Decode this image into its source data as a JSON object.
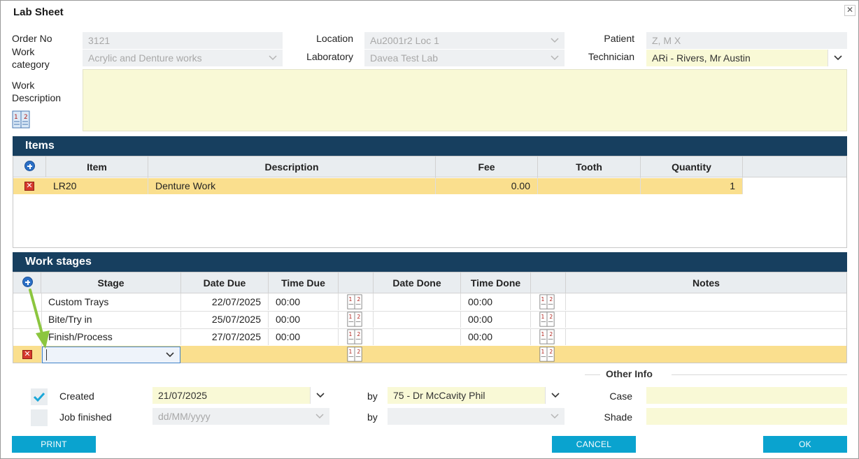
{
  "window": {
    "title": "Lab Sheet"
  },
  "form": {
    "order_no_label": "Order No",
    "order_no": "3121",
    "work_category_label": "Work\ncategory",
    "work_category": "Acrylic and Denture works",
    "location_label": "Location",
    "location": "Au2001r2 Loc 1",
    "laboratory_label": "Laboratory",
    "laboratory": "Davea Test Lab",
    "patient_label": "Patient",
    "patient": "Z, M X",
    "technician_label": "Technician",
    "technician": "ARi - Rivers, Mr Austin",
    "work_description_label": "Work\nDescription",
    "work_description": ""
  },
  "items": {
    "title": "Items",
    "columns": [
      "Item",
      "Description",
      "Fee",
      "Tooth",
      "Quantity"
    ],
    "rows": [
      {
        "item": "LR20",
        "description": "Denture Work",
        "fee": "0.00",
        "tooth": "",
        "quantity": "1"
      }
    ]
  },
  "work_stages": {
    "title": "Work stages",
    "columns": [
      "Stage",
      "Date Due",
      "Time Due",
      "Date Done",
      "Time Done",
      "Notes"
    ],
    "rows": [
      {
        "stage": "Custom Trays",
        "date_due": "22/07/2025",
        "time_due": "00:00",
        "date_done": "",
        "time_done": "00:00",
        "notes": ""
      },
      {
        "stage": "Bite/Try in",
        "date_due": "25/07/2025",
        "time_due": "00:00",
        "date_done": "",
        "time_done": "00:00",
        "notes": ""
      },
      {
        "stage": "Finish/Process",
        "date_due": "27/07/2025",
        "time_due": "00:00",
        "date_done": "",
        "time_done": "00:00",
        "notes": ""
      }
    ],
    "new_row_stage": ""
  },
  "status": {
    "created_label": "Created",
    "created_checked": true,
    "created_date": "21/07/2025",
    "created_by_label": "by",
    "created_by": "75 - Dr McCavity Phil",
    "finished_label": "Job finished",
    "finished_checked": false,
    "finished_date_placeholder": "dd/MM/yyyy",
    "finished_by_label": "by",
    "finished_by": ""
  },
  "other_info": {
    "title": "Other Info",
    "case_label": "Case",
    "case": "",
    "shade_label": "Shade",
    "shade": ""
  },
  "buttons": {
    "print": "PRINT",
    "cancel": "CANCEL",
    "ok": "OK"
  },
  "icons": {
    "close": "close-icon",
    "calendar": "calendar-icon",
    "add": "add-circle-icon",
    "delete": "delete-icon",
    "chevron": "chevron-down-icon",
    "check": "check-icon",
    "arrow": "green-arrow-icon"
  },
  "colors": {
    "section_header": "#173f5f",
    "button": "#0aa3cf",
    "row_highlight": "#fadf8e",
    "input_yellow": "#f9f9d6",
    "check": "#1aa7d8"
  }
}
